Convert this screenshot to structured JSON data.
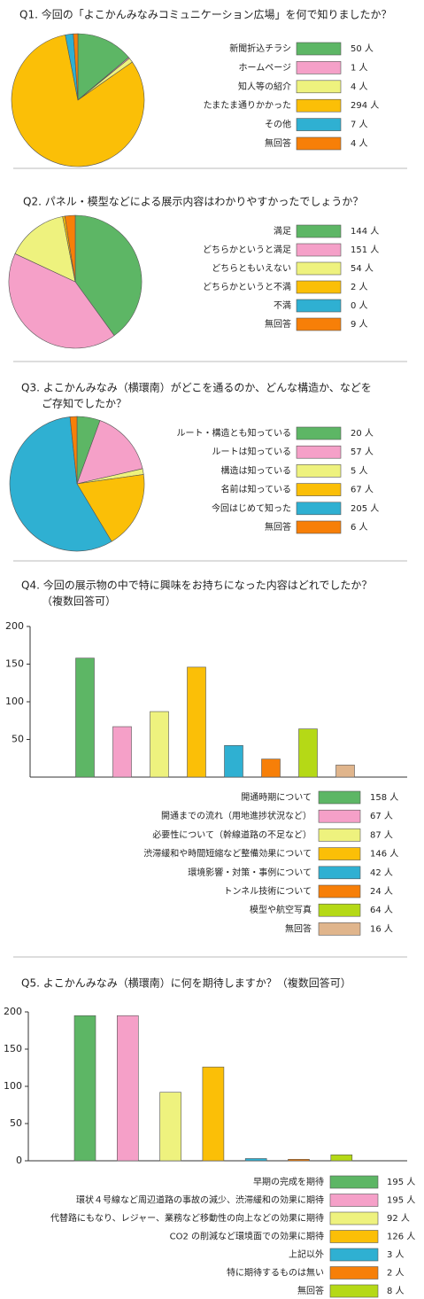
{
  "chart_data": [
    {
      "type": "pie",
      "title": [
        "Q1. 今回の「よこかんみなみコミュニケーション広場」を何で知りましたか？"
      ],
      "categories": [
        "新聞折込チラシ",
        "ホームページ",
        "知人等の紹介",
        "たまたま通りかかった",
        "その他",
        "無回答"
      ],
      "values": [
        50,
        1,
        4,
        294,
        7,
        4
      ],
      "value_labels": [
        "50 人",
        "1 人",
        "4 人",
        "294 人",
        "7 人",
        "4 人"
      ],
      "colors": [
        "#5db665",
        "#f5a0c8",
        "#eef27e",
        "#fbbf07",
        "#2fb0d2",
        "#f77f08"
      ]
    },
    {
      "type": "pie",
      "title": [
        "Q2. パネル・模型などによる展示内容はわかりやすかったでしょうか？"
      ],
      "categories": [
        "満足",
        "どちらかというと満足",
        "どちらともいえない",
        "どちらかというと不満",
        "不満",
        "無回答"
      ],
      "values": [
        144,
        151,
        54,
        2,
        0,
        9
      ],
      "value_labels": [
        "144 人",
        "151 人",
        "54 人",
        "2 人",
        "0 人",
        "9 人"
      ],
      "colors": [
        "#5db665",
        "#f5a0c8",
        "#eef27e",
        "#fbbf07",
        "#2fb0d2",
        "#f77f08"
      ]
    },
    {
      "type": "pie",
      "title": [
        "Q3. よこかんみなみ（横環南）がどこを通るのか、どんな構造か、などを",
        "ご存知でしたか？"
      ],
      "categories": [
        "ルート・構造とも知っている",
        "ルートは知っている",
        "構造は知っている",
        "名前は知っている",
        "今回はじめて知った",
        "無回答"
      ],
      "values": [
        20,
        57,
        5,
        67,
        205,
        6
      ],
      "value_labels": [
        "20 人",
        "57 人",
        "5 人",
        "67 人",
        "205 人",
        "6 人"
      ],
      "colors": [
        "#5db665",
        "#f5a0c8",
        "#eef27e",
        "#fbbf07",
        "#2fb0d2",
        "#f77f08"
      ]
    },
    {
      "type": "bar",
      "title": [
        "Q4. 今回の展示物の中で特に興味をお持ちになった内容はどれでしたか？",
        "（複数回答可）"
      ],
      "categories": [
        "開通時期について",
        "開通までの流れ（用地進捗状況など）",
        "必要性について（幹線道路の不足など）",
        "渋滞緩和や時間短縮など整備効果について",
        "環境影響・対策・事例について",
        "トンネル技術について",
        "模型や航空写真",
        "無回答"
      ],
      "values": [
        158,
        67,
        87,
        146,
        42,
        24,
        64,
        16
      ],
      "value_labels": [
        "158 人",
        "67 人",
        "87 人",
        "146 人",
        "42 人",
        "24 人",
        "64 人",
        "16 人"
      ],
      "colors": [
        "#5db665",
        "#f5a0c8",
        "#eef27e",
        "#fbbf07",
        "#2fb0d2",
        "#f77f08",
        "#b5d916",
        "#e0b58c"
      ],
      "ylim": [
        0,
        200
      ],
      "yticks": [
        50,
        100,
        150,
        200
      ]
    },
    {
      "type": "bar",
      "title": [
        "Q5. よこかんみなみ（横環南）に何を期待しますか？（複数回答可）"
      ],
      "categories": [
        "早期の完成を期待",
        "環状４号線など周辺道路の事故の減少、渋滞緩和の効果に期待",
        "代替路にもなり、レジャー、業務など移動性の向上などの効果に期待",
        "CO2 の削減など環境面での効果に期待",
        "上記以外",
        "特に期待するものは無い",
        "無回答"
      ],
      "values": [
        195,
        195,
        92,
        126,
        3,
        2,
        8
      ],
      "value_labels": [
        "195 人",
        "195 人",
        "92 人",
        "126 人",
        "3 人",
        "2 人",
        "8 人"
      ],
      "colors": [
        "#5db665",
        "#f5a0c8",
        "#eef27e",
        "#fbbf07",
        "#2fb0d2",
        "#f77f08",
        "#b5d916"
      ],
      "ylim": [
        0,
        200
      ],
      "yticks": [
        0,
        50,
        100,
        150,
        200
      ]
    }
  ]
}
